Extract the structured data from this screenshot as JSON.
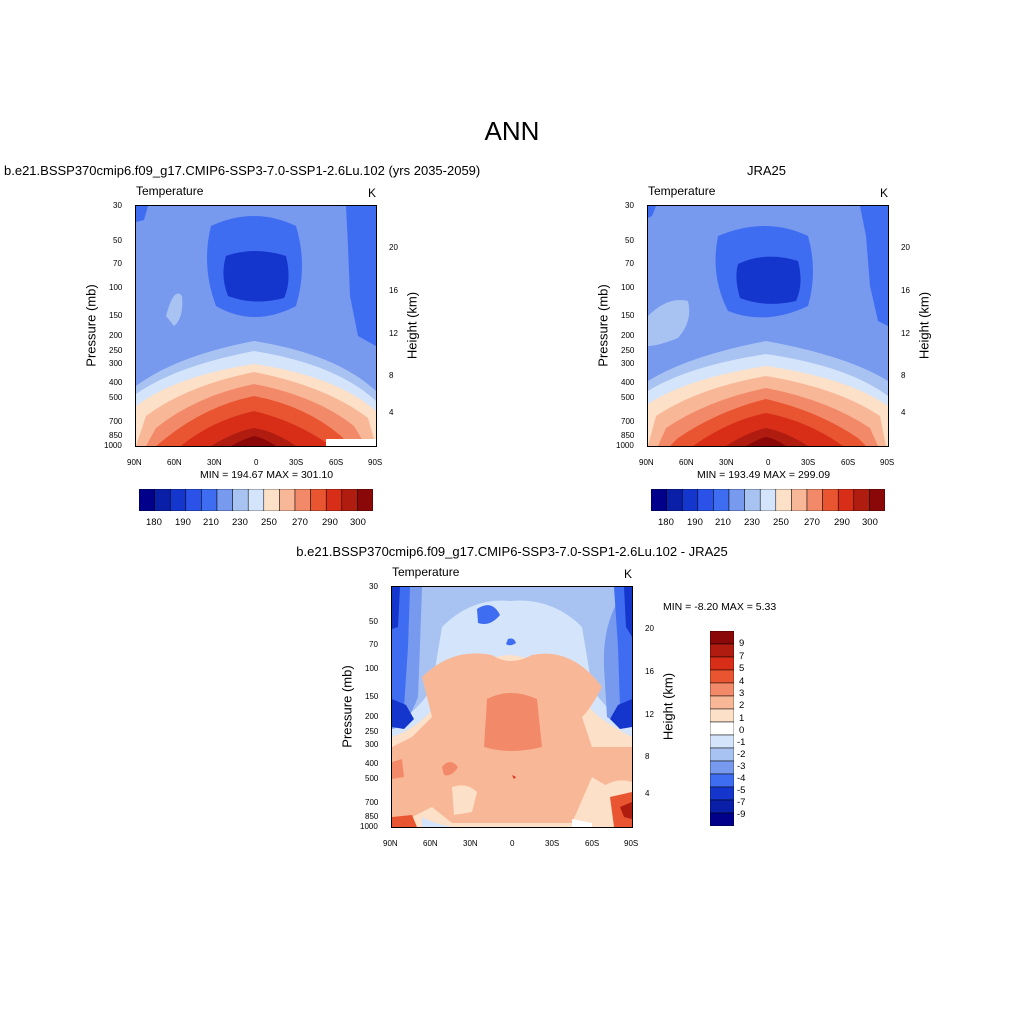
{
  "title": "ANN",
  "panels": [
    {
      "heading": "b.e21.BSSP370cmip6.f09_g17.CMIP6-SSP3-7.0-SSP1-2.6Lu.102 (yrs 2035-2059)",
      "label_left": "Temperature",
      "label_right": "K",
      "min_max": "MIN = 194.67  MAX = 301.10"
    },
    {
      "heading": "JRA25",
      "label_left": "Temperature",
      "label_right": "K",
      "min_max": "MIN = 193.49  MAX = 299.09"
    },
    {
      "heading": "b.e21.BSSP370cmip6.f09_g17.CMIP6-SSP3-7.0-SSP1-2.6Lu.102 - JRA25",
      "label_left": "Temperature",
      "label_right": "K",
      "min_max": "MIN =  -8.20  MAX =   5.33"
    }
  ],
  "chart_data": [
    {
      "type": "heatmap",
      "title": "Temperature",
      "units": "K",
      "xlabel": "",
      "ylabel": "Pressure (mb)",
      "ylabel_right": "Height (km)",
      "x_ticks": [
        "90N",
        "60N",
        "30N",
        "0",
        "30S",
        "60S",
        "90S"
      ],
      "y_ticks": [
        "30",
        "50",
        "70",
        "100",
        "150",
        "200",
        "250",
        "300",
        "400",
        "500",
        "700",
        "850",
        "1000"
      ],
      "y2_ticks": [
        "20",
        "16",
        "12",
        "8",
        "4"
      ],
      "min": 194.67,
      "max": 301.1,
      "colorbar_levels": [
        180,
        190,
        200,
        210,
        220,
        230,
        240,
        250,
        260,
        270,
        280,
        290,
        300
      ],
      "colorbar_labels": [
        "180",
        "190",
        "210",
        "230",
        "250",
        "270",
        "290",
        "300"
      ]
    },
    {
      "type": "heatmap",
      "title": "Temperature",
      "units": "K",
      "xlabel": "",
      "ylabel": "Pressure (mb)",
      "ylabel_right": "Height (km)",
      "x_ticks": [
        "90N",
        "60N",
        "30N",
        "0",
        "30S",
        "60S",
        "90S"
      ],
      "y_ticks": [
        "30",
        "50",
        "70",
        "100",
        "150",
        "200",
        "250",
        "300",
        "400",
        "500",
        "700",
        "850",
        "1000"
      ],
      "y2_ticks": [
        "20",
        "16",
        "12",
        "8",
        "4"
      ],
      "min": 193.49,
      "max": 299.09,
      "colorbar_levels": [
        180,
        190,
        200,
        210,
        220,
        230,
        240,
        250,
        260,
        270,
        280,
        290,
        300
      ],
      "colorbar_labels": [
        "180",
        "190",
        "210",
        "230",
        "250",
        "270",
        "290",
        "300"
      ]
    },
    {
      "type": "heatmap",
      "title": "Temperature",
      "units": "K",
      "xlabel": "",
      "ylabel": "Pressure (mb)",
      "ylabel_right": "Height (km)",
      "x_ticks": [
        "90N",
        "60N",
        "30N",
        "0",
        "30S",
        "60S",
        "90S"
      ],
      "y_ticks": [
        "30",
        "50",
        "70",
        "100",
        "150",
        "200",
        "250",
        "300",
        "400",
        "500",
        "700",
        "850",
        "1000"
      ],
      "y2_ticks": [
        "20",
        "16",
        "12",
        "8",
        "4"
      ],
      "min": -8.2,
      "max": 5.33,
      "colorbar_levels": [
        9,
        7,
        5,
        4,
        3,
        2,
        1,
        0,
        -1,
        -2,
        -3,
        -4,
        -5,
        -7,
        -9
      ],
      "colorbar_labels": [
        "9",
        "7",
        "5",
        "4",
        "3",
        "2",
        "1",
        "0",
        "-1",
        "-2",
        "-3",
        "-4",
        "-5",
        "-7",
        "-9"
      ]
    }
  ],
  "colors": {
    "temp_scale": [
      "#00008a",
      "#0a1fa8",
      "#1536cc",
      "#2a52e8",
      "#3f6df2",
      "#7799ee",
      "#a8c3f2",
      "#d4e4fa",
      "#fde0c8",
      "#f8b898",
      "#f28a6a",
      "#e85530",
      "#d82e18",
      "#b01c10",
      "#8a0808"
    ],
    "diff_scale": [
      "#8a0808",
      "#b01c10",
      "#d82e18",
      "#e85530",
      "#f28a6a",
      "#f8b898",
      "#fde0c8",
      "#ffffff",
      "#d4e4fa",
      "#a8c3f2",
      "#7799ee",
      "#3f6df2",
      "#1536cc",
      "#0a1fa8",
      "#00008a"
    ]
  }
}
